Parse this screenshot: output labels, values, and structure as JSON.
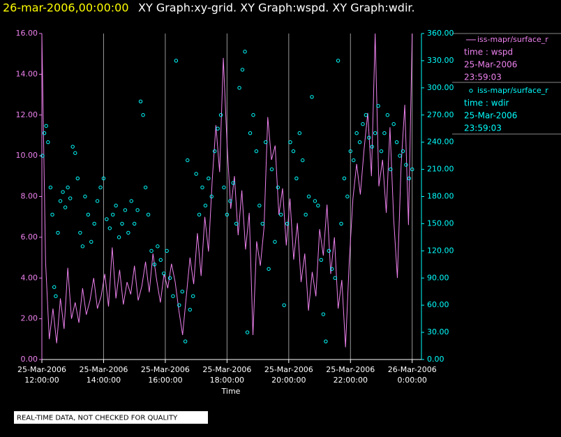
{
  "chart_data": {
    "type": "line-scatter",
    "title_time": "26-mar-2006,00:00:00",
    "title": "XY Graph:xy-grid.  XY Graph:wspd.  XY Graph:wdir.",
    "xlabel": "Time",
    "footer": "REAL-TIME DATA, NOT CHECKED FOR QUALITY",
    "grid": true,
    "xlim": [
      12,
      24.3
    ],
    "xticks": [
      {
        "value": 12,
        "label": "25-Mar-2006 12:00:00"
      },
      {
        "value": 14,
        "label": "25-Mar-2006 14:00:00"
      },
      {
        "value": 16,
        "label": "25-Mar-2006 16:00:00"
      },
      {
        "value": 18,
        "label": "25-Mar-2006 18:00:00"
      },
      {
        "value": 20,
        "label": "25-Mar-2006 20:00:00"
      },
      {
        "value": 22,
        "label": "25-Mar-2006 22:00:00"
      },
      {
        "value": 24,
        "label": "26-Mar-2006 0:00:00"
      }
    ],
    "ylim": [
      0,
      16
    ],
    "yticks": [
      {
        "value": 0,
        "label": "0.00"
      },
      {
        "value": 2,
        "label": "2.00"
      },
      {
        "value": 4,
        "label": "4.00"
      },
      {
        "value": 6,
        "label": "6.00"
      },
      {
        "value": 8,
        "label": "8.00"
      },
      {
        "value": 10,
        "label": "10.00"
      },
      {
        "value": 12,
        "label": "12.00"
      },
      {
        "value": 14,
        "label": "14.00"
      },
      {
        "value": 16,
        "label": "16.00"
      }
    ],
    "y2lim": [
      0,
      360
    ],
    "y2ticks": [
      {
        "value": 0,
        "label": "0.00"
      },
      {
        "value": 30,
        "label": "30.00"
      },
      {
        "value": 60,
        "label": "60.00"
      },
      {
        "value": 90,
        "label": "90.00"
      },
      {
        "value": 120,
        "label": "120.00"
      },
      {
        "value": 150,
        "label": "150.00"
      },
      {
        "value": 180,
        "label": "180.00"
      },
      {
        "value": 210,
        "label": "210.00"
      },
      {
        "value": 240,
        "label": "240.00"
      },
      {
        "value": 270,
        "label": "270.00"
      },
      {
        "value": 300,
        "label": "300.00"
      },
      {
        "value": 330,
        "label": "330.00"
      },
      {
        "value": 360,
        "label": "360.00"
      }
    ],
    "series": [
      {
        "name": "iss-mapr/surface_r",
        "color": "#ee82ee",
        "kind": "line",
        "axis": "y",
        "details": [
          "time : wspd",
          "25-Mar-2006",
          "23:59:03"
        ],
        "x": [
          12.0,
          12.12,
          12.24,
          12.36,
          12.48,
          12.6,
          12.72,
          12.84,
          12.96,
          13.08,
          13.2,
          13.32,
          13.44,
          13.56,
          13.68,
          13.8,
          13.92,
          14.04,
          14.16,
          14.28,
          14.4,
          14.52,
          14.64,
          14.76,
          14.88,
          15.0,
          15.12,
          15.24,
          15.36,
          15.48,
          15.6,
          15.72,
          15.84,
          15.96,
          16.08,
          16.2,
          16.32,
          16.44,
          16.56,
          16.68,
          16.8,
          16.92,
          17.04,
          17.16,
          17.28,
          17.4,
          17.52,
          17.64,
          17.76,
          17.88,
          18.0,
          18.12,
          18.24,
          18.36,
          18.48,
          18.6,
          18.72,
          18.84,
          18.96,
          19.08,
          19.2,
          19.32,
          19.44,
          19.56,
          19.68,
          19.8,
          19.92,
          20.04,
          20.16,
          20.28,
          20.4,
          20.52,
          20.64,
          20.76,
          20.88,
          21.0,
          21.12,
          21.24,
          21.36,
          21.48,
          21.6,
          21.72,
          21.84,
          21.96,
          22.08,
          22.2,
          22.32,
          22.44,
          22.56,
          22.68,
          22.8,
          22.92,
          23.04,
          23.16,
          23.28,
          23.4,
          23.52,
          23.64,
          23.76,
          23.88,
          24.0
        ],
        "values": [
          16,
          4.8,
          1.0,
          2.5,
          0.8,
          3.0,
          1.5,
          4.5,
          2.0,
          2.8,
          1.8,
          3.5,
          2.2,
          2.9,
          4.0,
          2.5,
          3.1,
          4.2,
          2.6,
          5.5,
          3.0,
          4.4,
          2.7,
          3.8,
          3.2,
          4.6,
          2.9,
          3.6,
          4.8,
          3.3,
          5.2,
          3.9,
          2.8,
          4.2,
          3.5,
          4.7,
          3.8,
          2.4,
          1.2,
          3.1,
          5.0,
          3.7,
          6.2,
          4.1,
          7.0,
          5.3,
          8.8,
          11.5,
          9.2,
          14.8,
          10.6,
          7.4,
          9.0,
          6.1,
          8.3,
          5.4,
          7.2,
          1.2,
          5.8,
          4.6,
          6.5,
          11.9,
          9.8,
          10.5,
          7.1,
          8.4,
          5.6,
          7.9,
          4.9,
          6.7,
          3.8,
          5.2,
          2.4,
          4.3,
          3.1,
          6.4,
          5.1,
          7.6,
          4.2,
          6.0,
          2.5,
          3.9,
          0.6,
          4.8,
          7.9,
          9.6,
          8.1,
          10.3,
          12.1,
          9.0,
          16.0,
          8.5,
          9.8,
          7.2,
          11.4,
          6.9,
          4.0,
          9.5,
          12.5,
          6.6,
          16.0
        ]
      },
      {
        "name": "iss-mapr/surface_r",
        "color": "#00ffff",
        "kind": "scatter",
        "axis": "y2",
        "details": [
          "time : wdir",
          "25-Mar-2006",
          "23:59:03"
        ],
        "x": [
          12.02,
          12.08,
          12.14,
          12.2,
          12.28,
          12.34,
          12.4,
          12.45,
          12.52,
          12.6,
          12.68,
          12.76,
          12.84,
          12.92,
          13.0,
          13.08,
          13.16,
          13.24,
          13.32,
          13.4,
          13.5,
          13.6,
          13.7,
          13.8,
          13.9,
          14.0,
          14.1,
          14.2,
          14.3,
          14.4,
          14.5,
          14.6,
          14.7,
          14.8,
          14.9,
          15.0,
          15.1,
          15.2,
          15.28,
          15.36,
          15.45,
          15.55,
          15.65,
          15.75,
          15.85,
          15.95,
          16.05,
          16.15,
          16.25,
          16.35,
          16.45,
          16.55,
          16.65,
          16.72,
          16.8,
          16.9,
          17.0,
          17.1,
          17.2,
          17.3,
          17.4,
          17.5,
          17.6,
          17.7,
          17.8,
          17.9,
          18.0,
          18.1,
          18.2,
          18.3,
          18.4,
          18.5,
          18.58,
          18.66,
          18.75,
          18.85,
          18.95,
          19.05,
          19.15,
          19.25,
          19.35,
          19.45,
          19.55,
          19.65,
          19.75,
          19.85,
          19.95,
          20.05,
          20.15,
          20.25,
          20.35,
          20.45,
          20.55,
          20.65,
          20.75,
          20.85,
          20.95,
          21.05,
          21.12,
          21.2,
          21.3,
          21.4,
          21.5,
          21.6,
          21.7,
          21.8,
          21.9,
          22.0,
          22.1,
          22.2,
          22.3,
          22.4,
          22.5,
          22.6,
          22.7,
          22.8,
          22.9,
          23.0,
          23.1,
          23.2,
          23.3,
          23.4,
          23.5,
          23.6,
          23.7,
          23.8,
          23.9,
          24.0
        ],
        "values": [
          225,
          250,
          258,
          240,
          190,
          160,
          80,
          70,
          140,
          175,
          185,
          168,
          190,
          178,
          235,
          228,
          200,
          140,
          125,
          180,
          160,
          130,
          150,
          175,
          190,
          200,
          155,
          145,
          160,
          170,
          135,
          150,
          165,
          140,
          175,
          150,
          165,
          285,
          270,
          190,
          160,
          120,
          105,
          125,
          110,
          95,
          120,
          90,
          70,
          330,
          60,
          75,
          20,
          220,
          55,
          70,
          205,
          160,
          190,
          170,
          200,
          180,
          230,
          255,
          270,
          190,
          160,
          175,
          195,
          150,
          300,
          320,
          340,
          30,
          250,
          270,
          230,
          170,
          150,
          240,
          100,
          210,
          130,
          190,
          160,
          60,
          150,
          240,
          230,
          200,
          250,
          220,
          160,
          180,
          290,
          175,
          170,
          110,
          50,
          20,
          120,
          100,
          90,
          330,
          150,
          200,
          180,
          230,
          220,
          250,
          240,
          260,
          270,
          245,
          235,
          250,
          280,
          230,
          250,
          270,
          210,
          260,
          240,
          225,
          230,
          215,
          200,
          210
        ]
      }
    ]
  }
}
